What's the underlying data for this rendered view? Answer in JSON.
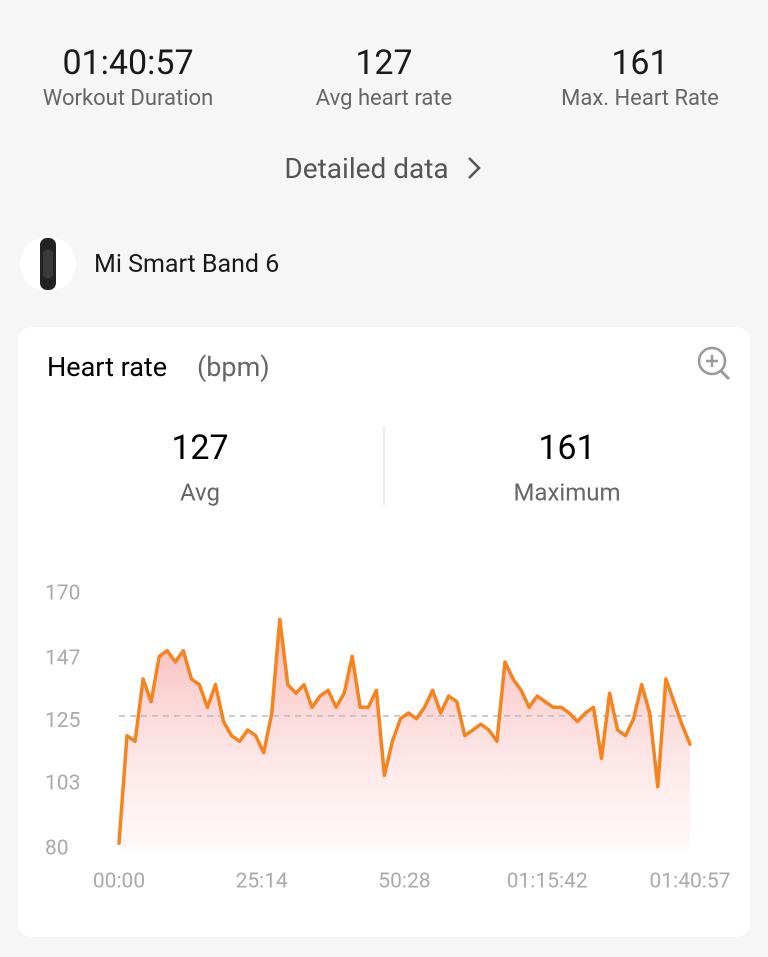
{
  "summary": [
    {
      "value": "01:40:57",
      "label": "Workout Duration"
    },
    {
      "value": "127",
      "label": "Avg heart rate"
    },
    {
      "value": "161",
      "label": "Max. Heart Rate"
    }
  ],
  "detail_link": "Detailed data",
  "device": "Mi Smart Band 6",
  "chart_data": {
    "type": "line",
    "title": "Heart rate",
    "unit": "(bpm)",
    "average": 127,
    "average_label": "Avg",
    "maximum": 161,
    "maximum_label": "Maximum",
    "color": "#f5841f",
    "xlim": [
      0,
      6057
    ],
    "xticks": [
      {
        "value": 0,
        "label": "00:00"
      },
      {
        "value": 1514,
        "label": "25:14"
      },
      {
        "value": 3028,
        "label": "50:28"
      },
      {
        "value": 4542,
        "label": "01:15:42"
      },
      {
        "value": 6057,
        "label": "01:40:57"
      }
    ],
    "ylim": [
      80,
      170
    ],
    "yticks": [
      80,
      103,
      125,
      147,
      170
    ],
    "x": [
      0,
      85,
      171,
      256,
      341,
      427,
      512,
      597,
      682,
      768,
      853,
      938,
      1024,
      1109,
      1194,
      1280,
      1365,
      1450,
      1535,
      1621,
      1706,
      1791,
      1877,
      1962,
      2047,
      2133,
      2218,
      2303,
      2389,
      2474,
      2559,
      2644,
      2730,
      2815,
      2900,
      2986,
      3071,
      3156,
      3242,
      3327,
      3412,
      3497,
      3583,
      3668,
      3753,
      3839,
      3924,
      4009,
      4095,
      4180,
      4265,
      4350,
      4436,
      4521,
      4606,
      4692,
      4777,
      4862,
      4948,
      5033,
      5118,
      5204,
      5289,
      5374,
      5459,
      5545,
      5630,
      5715,
      5801,
      5886,
      5971,
      6057
    ],
    "values": [
      82,
      120,
      118,
      140,
      132,
      148,
      150,
      146,
      150,
      140,
      138,
      130,
      138,
      125,
      120,
      118,
      122,
      120,
      114,
      128,
      161,
      138,
      135,
      138,
      130,
      134,
      136,
      130,
      135,
      148,
      130,
      130,
      136,
      106,
      118,
      126,
      128,
      126,
      130,
      136,
      128,
      134,
      132,
      120,
      122,
      124,
      122,
      118,
      146,
      140,
      136,
      130,
      134,
      132,
      130,
      130,
      128,
      125,
      128,
      130,
      112,
      135,
      122,
      120,
      126,
      138,
      128,
      102,
      140,
      132,
      124,
      117
    ]
  }
}
